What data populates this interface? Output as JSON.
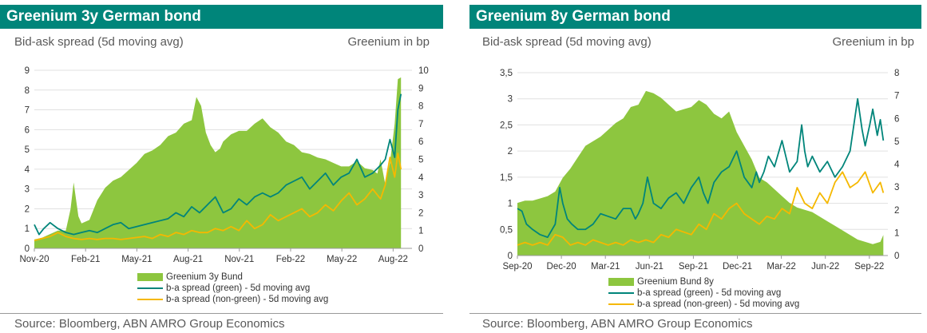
{
  "chart_data": [
    {
      "type": "area+line",
      "title": "Greenium 3y German bond",
      "left_axis_label": "Bid-ask spread (5d moving avg)",
      "right_axis_label": "Greenium in bp",
      "left_ticks": [
        "0",
        "1",
        "2",
        "3",
        "4",
        "5",
        "6",
        "7",
        "8",
        "9"
      ],
      "right_ticks": [
        "0",
        "1",
        "2",
        "3",
        "4",
        "5",
        "6",
        "7",
        "8",
        "9",
        "10"
      ],
      "ylim_left": [
        0,
        9
      ],
      "ylim_right": [
        0,
        10
      ],
      "x_labels": [
        "Nov-20",
        "Feb-21",
        "May-21",
        "Aug-21",
        "Nov-21",
        "Feb-22",
        "May-22",
        "Aug-22"
      ],
      "x_domain": [
        0,
        24
      ],
      "series": [
        {
          "name": "Greenium 3y Bund",
          "kind": "area",
          "axis": "right",
          "color": "#8dc63f",
          "x": [
            0,
            0.5,
            1,
            1.5,
            2,
            2.3,
            2.5,
            2.8,
            3,
            3.5,
            4,
            4.5,
            5,
            5.5,
            6,
            6.5,
            7,
            7.5,
            8,
            8.5,
            9,
            9.5,
            10,
            10.3,
            10.6,
            10.9,
            11.2,
            11.5,
            11.8,
            12,
            12.5,
            13,
            13.5,
            14,
            14.5,
            15,
            15.5,
            16,
            16.5,
            17,
            17.5,
            18,
            18.5,
            19,
            19.5,
            20,
            20.5,
            21,
            21.5,
            21.8,
            22,
            22.3,
            22.6,
            22.9,
            23.1,
            23.3
          ],
          "values": [
            0.5,
            0.6,
            0.8,
            1.0,
            1.0,
            2.2,
            3.7,
            1.8,
            1.4,
            1.6,
            2.7,
            3.4,
            3.8,
            4.0,
            4.4,
            4.8,
            5.3,
            5.5,
            5.8,
            6.3,
            6.5,
            7.0,
            7.2,
            8.5,
            8.0,
            6.5,
            5.8,
            5.4,
            5.6,
            6.0,
            6.4,
            6.6,
            6.6,
            7.0,
            7.3,
            6.8,
            6.5,
            6.0,
            5.8,
            5.4,
            5.3,
            5.1,
            5.0,
            4.8,
            4.6,
            4.6,
            4.9,
            4.5,
            4.4,
            4.2,
            5.0,
            3.6,
            4.8,
            7.0,
            9.5,
            9.6
          ]
        },
        {
          "name": "b-a spread (green) - 5d moving avg",
          "kind": "line",
          "axis": "left",
          "color": "#00857a",
          "x": [
            0,
            0.3,
            0.6,
            1,
            1.5,
            2,
            2.5,
            3,
            3.5,
            4,
            4.5,
            5,
            5.5,
            6,
            6.5,
            7,
            7.5,
            8,
            8.5,
            9,
            9.5,
            10,
            10.5,
            11,
            11.5,
            12,
            12.5,
            13,
            13.5,
            14,
            14.5,
            15,
            15.5,
            16,
            16.5,
            17,
            17.5,
            18,
            18.5,
            19,
            19.5,
            20,
            20.5,
            21,
            21.5,
            22,
            22.3,
            22.6,
            22.9,
            23.1,
            23.3
          ],
          "values": [
            1.2,
            0.7,
            1.0,
            1.3,
            1.0,
            0.8,
            0.7,
            0.8,
            0.9,
            0.8,
            1.0,
            1.2,
            1.3,
            1.0,
            1.1,
            1.2,
            1.3,
            1.4,
            1.5,
            1.8,
            1.6,
            2.1,
            1.8,
            2.2,
            2.6,
            1.8,
            2.0,
            2.5,
            2.2,
            2.6,
            2.8,
            2.6,
            2.8,
            3.2,
            3.4,
            3.6,
            3.0,
            3.4,
            3.8,
            3.2,
            3.6,
            3.8,
            4.5,
            3.6,
            3.8,
            4.2,
            4.5,
            5.5,
            4.6,
            7.0,
            7.8
          ]
        },
        {
          "name": "b-a spread (non-green) - 5d moving avg",
          "kind": "line",
          "axis": "left",
          "color": "#f5b800",
          "x": [
            0,
            0.5,
            1,
            1.5,
            2,
            2.5,
            3,
            3.5,
            4,
            4.5,
            5,
            5.5,
            6,
            6.5,
            7,
            7.5,
            8,
            8.5,
            9,
            9.5,
            10,
            10.5,
            11,
            11.5,
            12,
            12.5,
            13,
            13.5,
            14,
            14.5,
            15,
            15.5,
            16,
            16.5,
            17,
            17.5,
            18,
            18.5,
            19,
            19.5,
            20,
            20.5,
            21,
            21.5,
            22,
            22.3,
            22.6,
            22.9,
            23.1,
            23.3
          ],
          "values": [
            0.4,
            0.5,
            0.6,
            0.8,
            0.6,
            0.5,
            0.45,
            0.5,
            0.45,
            0.5,
            0.5,
            0.45,
            0.5,
            0.55,
            0.6,
            0.5,
            0.7,
            0.6,
            0.8,
            0.7,
            0.9,
            0.8,
            0.8,
            1.0,
            0.9,
            1.1,
            0.9,
            1.4,
            1.0,
            1.2,
            1.7,
            1.4,
            1.6,
            1.8,
            2.0,
            1.6,
            1.8,
            2.2,
            1.9,
            2.4,
            2.8,
            2.2,
            2.5,
            3.0,
            2.5,
            3.2,
            4.6,
            3.6,
            4.8,
            4.0
          ]
        }
      ]
    },
    {
      "type": "area+line",
      "title": "Greenium 8y German bond",
      "left_axis_label": "Bid-ask spread (5d moving avg)",
      "right_axis_label": "Greenium in bp",
      "left_ticks": [
        "0",
        "0,5",
        "1",
        "1,5",
        "2",
        "2,5",
        "3",
        "3,5"
      ],
      "right_ticks": [
        "0",
        "1",
        "2",
        "3",
        "4",
        "5",
        "6",
        "7",
        "8"
      ],
      "ylim_left": [
        0,
        3.5
      ],
      "ylim_right": [
        0,
        8
      ],
      "x_labels": [
        "Sep-20",
        "Dec-20",
        "Mar-21",
        "Jun-21",
        "Sep-21",
        "Dec-21",
        "Mar-22",
        "Jun-22",
        "Sep-22"
      ],
      "x_domain": [
        0,
        24.5
      ],
      "series": [
        {
          "name": "Greenium Bund 8y",
          "kind": "area",
          "axis": "right",
          "color": "#8dc63f",
          "x": [
            0,
            0.5,
            1,
            1.5,
            2,
            2.5,
            3,
            3.5,
            4,
            4.5,
            5,
            5.5,
            6,
            6.5,
            7,
            7.5,
            8,
            8.5,
            9,
            9.5,
            10,
            10.5,
            11,
            11.5,
            12,
            12.5,
            13,
            13.5,
            14,
            14.5,
            15,
            15.5,
            16,
            16.5,
            17,
            17.5,
            18,
            18.5,
            19,
            19.5,
            20,
            20.5,
            21,
            21.5,
            22,
            22.5,
            23,
            23.5,
            24,
            24.2
          ],
          "values": [
            2.3,
            2.4,
            2.4,
            2.5,
            2.6,
            2.8,
            3.4,
            3.8,
            4.3,
            4.8,
            5.0,
            5.2,
            5.5,
            5.8,
            6.0,
            6.5,
            6.6,
            7.2,
            7.1,
            6.9,
            6.6,
            6.3,
            6.4,
            6.5,
            6.8,
            6.6,
            6.2,
            6.0,
            6.3,
            5.4,
            4.8,
            4.2,
            3.4,
            3.2,
            2.9,
            2.6,
            2.3,
            2.1,
            2.0,
            1.9,
            1.7,
            1.5,
            1.3,
            1.1,
            0.9,
            0.7,
            0.6,
            0.5,
            0.6,
            0.9
          ]
        },
        {
          "name": "b-a spread (green) - 5d moving avg",
          "kind": "line",
          "axis": "left",
          "color": "#00857a",
          "x": [
            0,
            0.3,
            0.6,
            1,
            1.5,
            2,
            2.5,
            2.8,
            3,
            3.3,
            3.6,
            4,
            4.5,
            5,
            5.5,
            6,
            6.5,
            7,
            7.5,
            7.8,
            8,
            8.3,
            8.6,
            9,
            9.5,
            10,
            10.5,
            11,
            11.5,
            12,
            12.3,
            12.6,
            13,
            13.5,
            14,
            14.5,
            15,
            15.5,
            15.8,
            16,
            16.3,
            16.6,
            17,
            17.5,
            18,
            18.5,
            18.8,
            19,
            19.2,
            19.5,
            20,
            20.5,
            21,
            21.5,
            22,
            22.5,
            22.8,
            23,
            23.3,
            23.5,
            23.8,
            24,
            24.2
          ],
          "values": [
            0.9,
            0.85,
            0.6,
            0.5,
            0.4,
            0.35,
            0.6,
            1.3,
            1.0,
            0.7,
            0.6,
            0.5,
            0.5,
            0.6,
            0.8,
            0.75,
            0.7,
            0.9,
            0.9,
            0.7,
            0.8,
            1.0,
            1.5,
            1.0,
            0.9,
            1.1,
            1.2,
            1.0,
            1.3,
            1.5,
            1.2,
            1.0,
            1.4,
            1.6,
            1.7,
            2.0,
            1.5,
            1.3,
            1.6,
            1.4,
            1.6,
            1.9,
            1.7,
            2.2,
            1.6,
            1.8,
            2.5,
            2.0,
            1.7,
            1.9,
            1.6,
            1.8,
            1.5,
            1.7,
            2.0,
            3.0,
            2.4,
            2.1,
            2.5,
            2.8,
            2.3,
            2.6,
            2.2
          ]
        },
        {
          "name": "b-a spread (non-green) - 5d moving avg",
          "kind": "line",
          "axis": "left",
          "color": "#f5b800",
          "x": [
            0,
            0.5,
            1,
            1.5,
            2,
            2.5,
            3,
            3.5,
            4,
            4.5,
            5,
            5.5,
            6,
            6.5,
            7,
            7.5,
            8,
            8.5,
            9,
            9.5,
            10,
            10.5,
            11,
            11.5,
            12,
            12.5,
            13,
            13.5,
            14,
            14.5,
            15,
            15.5,
            16,
            16.5,
            17,
            17.5,
            18,
            18.5,
            19,
            19.5,
            20,
            20.5,
            21,
            21.5,
            22,
            22.5,
            23,
            23.5,
            24,
            24.2
          ],
          "values": [
            0.2,
            0.25,
            0.2,
            0.25,
            0.2,
            0.4,
            0.35,
            0.2,
            0.25,
            0.2,
            0.3,
            0.25,
            0.2,
            0.25,
            0.2,
            0.3,
            0.25,
            0.3,
            0.25,
            0.4,
            0.35,
            0.5,
            0.45,
            0.4,
            0.6,
            0.5,
            0.8,
            0.7,
            0.9,
            1.0,
            0.8,
            0.7,
            0.6,
            0.75,
            0.7,
            0.9,
            0.8,
            1.3,
            1.0,
            0.9,
            1.2,
            1.0,
            1.4,
            1.6,
            1.3,
            1.4,
            1.6,
            1.2,
            1.4,
            1.2
          ]
        }
      ]
    }
  ],
  "source_text": "Source: Bloomberg, ABN AMRO Group Economics"
}
